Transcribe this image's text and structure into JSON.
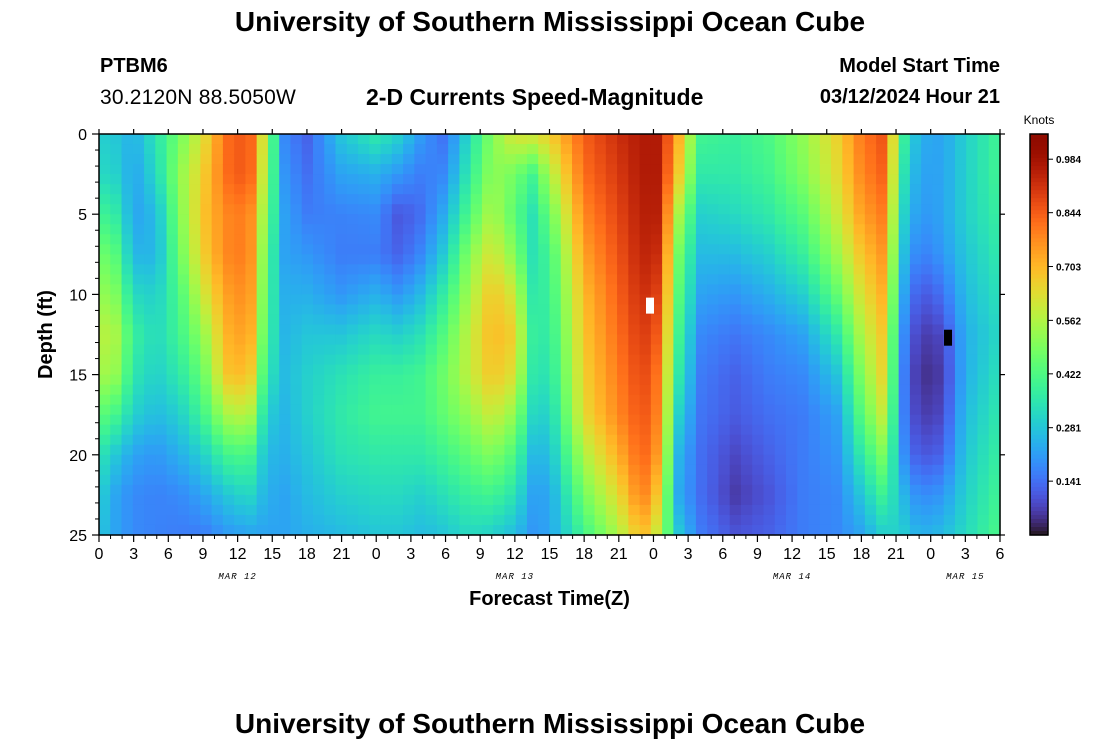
{
  "header": {
    "title": "University of Southern Mississippi Ocean Cube",
    "station_id": "PTBM6",
    "station_coords": "30.2120N  88.5050W",
    "subtitle": "2-D Currents Speed-Magnitude",
    "model_start_label": "Model Start Time",
    "model_start_time": "03/12/2024 Hour 21"
  },
  "footer": {
    "title": "University of Southern Mississippi Ocean Cube"
  },
  "chart_data": {
    "type": "heatmap",
    "title": "2-D Currents Speed-Magnitude",
    "xlabel": "Forecast Time(Z)",
    "ylabel": "Depth (ft)",
    "x_unit": "forecast hour (Z), starting Mar 12 00Z",
    "xlim": [
      0,
      78
    ],
    "ylim": [
      0,
      25
    ],
    "y_inverted": true,
    "x_ticks": [
      0,
      3,
      6,
      9,
      12,
      15,
      18,
      21,
      24,
      27,
      30,
      33,
      36,
      39,
      42,
      45,
      48,
      51,
      54,
      57,
      60,
      63,
      66,
      69,
      72,
      75,
      78
    ],
    "x_tick_labels": [
      "0",
      "3",
      "6",
      "9",
      "12",
      "15",
      "18",
      "21",
      "0",
      "3",
      "6",
      "9",
      "12",
      "15",
      "18",
      "21",
      "0",
      "3",
      "6",
      "9",
      "12",
      "15",
      "18",
      "21",
      "0",
      "3",
      "6"
    ],
    "y_ticks": [
      0,
      5,
      10,
      15,
      20,
      25
    ],
    "y_tick_labels": [
      "0",
      "5",
      "10",
      "15",
      "20",
      "25"
    ],
    "date_labels": [
      {
        "x": 12,
        "label": "MAR 12"
      },
      {
        "x": 36,
        "label": "MAR 13"
      },
      {
        "x": 60,
        "label": "MAR 14"
      },
      {
        "x": 75,
        "label": "MAR 15"
      }
    ],
    "colorbar": {
      "unit": "Knots",
      "range": [
        0.0,
        1.05
      ],
      "ticks": [
        0.984,
        0.844,
        0.703,
        0.562,
        0.422,
        0.281,
        0.141
      ],
      "colormap": "turbo"
    },
    "grid": false,
    "depths": [
      0,
      2.5,
      5,
      7.5,
      10,
      12.5,
      15,
      17.5,
      20,
      22.5,
      25
    ],
    "columns": [
      {
        "t": 0,
        "v": [
          0.3,
          0.32,
          0.4,
          0.48,
          0.53,
          0.58,
          0.55,
          0.45,
          0.35,
          0.3,
          0.28
        ]
      },
      {
        "t": 1.5,
        "v": [
          0.28,
          0.3,
          0.36,
          0.43,
          0.49,
          0.55,
          0.52,
          0.4,
          0.28,
          0.22,
          0.22
        ]
      },
      {
        "t": 3,
        "v": [
          0.24,
          0.22,
          0.22,
          0.25,
          0.32,
          0.38,
          0.35,
          0.3,
          0.22,
          0.18,
          0.18
        ]
      },
      {
        "t": 5,
        "v": [
          0.35,
          0.32,
          0.26,
          0.25,
          0.3,
          0.32,
          0.3,
          0.26,
          0.2,
          0.17,
          0.17
        ]
      },
      {
        "t": 7,
        "v": [
          0.48,
          0.52,
          0.5,
          0.47,
          0.42,
          0.4,
          0.36,
          0.3,
          0.24,
          0.18,
          0.16
        ]
      },
      {
        "t": 9,
        "v": [
          0.62,
          0.66,
          0.68,
          0.66,
          0.6,
          0.52,
          0.46,
          0.4,
          0.3,
          0.22,
          0.16
        ]
      },
      {
        "t": 11,
        "v": [
          0.82,
          0.82,
          0.78,
          0.78,
          0.74,
          0.71,
          0.68,
          0.55,
          0.4,
          0.28,
          0.2
        ]
      },
      {
        "t": 13,
        "v": [
          0.86,
          0.86,
          0.8,
          0.8,
          0.78,
          0.75,
          0.7,
          0.58,
          0.42,
          0.32,
          0.22
        ]
      },
      {
        "t": 14.5,
        "v": [
          0.55,
          0.52,
          0.48,
          0.44,
          0.42,
          0.4,
          0.36,
          0.3,
          0.26,
          0.24,
          0.22
        ]
      },
      {
        "t": 16,
        "v": [
          0.18,
          0.2,
          0.22,
          0.22,
          0.24,
          0.25,
          0.26,
          0.25,
          0.24,
          0.22,
          0.22
        ]
      },
      {
        "t": 18,
        "v": [
          0.12,
          0.14,
          0.16,
          0.2,
          0.24,
          0.28,
          0.3,
          0.3,
          0.28,
          0.26,
          0.24
        ]
      },
      {
        "t": 21,
        "v": [
          0.28,
          0.22,
          0.17,
          0.16,
          0.2,
          0.28,
          0.34,
          0.36,
          0.34,
          0.3,
          0.26
        ]
      },
      {
        "t": 24,
        "v": [
          0.36,
          0.24,
          0.18,
          0.16,
          0.24,
          0.32,
          0.38,
          0.4,
          0.36,
          0.32,
          0.28
        ]
      },
      {
        "t": 26,
        "v": [
          0.3,
          0.2,
          0.1,
          0.12,
          0.2,
          0.3,
          0.38,
          0.4,
          0.36,
          0.32,
          0.28
        ]
      },
      {
        "t": 28,
        "v": [
          0.2,
          0.16,
          0.14,
          0.18,
          0.26,
          0.34,
          0.4,
          0.4,
          0.36,
          0.3,
          0.26
        ]
      },
      {
        "t": 30,
        "v": [
          0.14,
          0.18,
          0.24,
          0.3,
          0.38,
          0.44,
          0.48,
          0.46,
          0.4,
          0.34,
          0.28
        ]
      },
      {
        "t": 32,
        "v": [
          0.32,
          0.36,
          0.42,
          0.5,
          0.54,
          0.58,
          0.58,
          0.52,
          0.45,
          0.38,
          0.32
        ]
      },
      {
        "t": 34,
        "v": [
          0.5,
          0.52,
          0.56,
          0.62,
          0.68,
          0.7,
          0.68,
          0.6,
          0.5,
          0.4,
          0.3
        ]
      },
      {
        "t": 36,
        "v": [
          0.62,
          0.48,
          0.44,
          0.5,
          0.6,
          0.66,
          0.62,
          0.52,
          0.42,
          0.34,
          0.26
        ]
      },
      {
        "t": 37.5,
        "v": [
          0.62,
          0.4,
          0.34,
          0.34,
          0.36,
          0.38,
          0.36,
          0.32,
          0.26,
          0.22,
          0.2
        ]
      },
      {
        "t": 39,
        "v": [
          0.66,
          0.55,
          0.46,
          0.4,
          0.38,
          0.36,
          0.34,
          0.3,
          0.26,
          0.22,
          0.22
        ]
      },
      {
        "t": 42,
        "v": [
          0.84,
          0.82,
          0.78,
          0.74,
          0.7,
          0.68,
          0.66,
          0.64,
          0.56,
          0.48,
          0.4
        ]
      },
      {
        "t": 45,
        "v": [
          0.92,
          0.9,
          0.88,
          0.86,
          0.84,
          0.82,
          0.8,
          0.78,
          0.72,
          0.64,
          0.56
        ]
      },
      {
        "t": 47,
        "v": [
          0.96,
          0.96,
          0.95,
          0.94,
          0.92,
          0.9,
          0.88,
          0.86,
          0.84,
          0.8,
          0.7
        ]
      },
      {
        "t": 48.5,
        "v": [
          0.96,
          0.96,
          0.95,
          0.92,
          0.88,
          0.84,
          0.8,
          0.78,
          0.74,
          0.66,
          0.58
        ]
      },
      {
        "t": 50,
        "v": [
          0.75,
          0.7,
          0.58,
          0.5,
          0.46,
          0.42,
          0.38,
          0.32,
          0.26,
          0.24,
          0.3
        ]
      },
      {
        "t": 52,
        "v": [
          0.4,
          0.36,
          0.3,
          0.26,
          0.22,
          0.18,
          0.16,
          0.15,
          0.14,
          0.14,
          0.16
        ]
      },
      {
        "t": 55,
        "v": [
          0.38,
          0.36,
          0.32,
          0.26,
          0.2,
          0.15,
          0.12,
          0.11,
          0.08,
          0.06,
          0.1
        ]
      },
      {
        "t": 58,
        "v": [
          0.42,
          0.4,
          0.36,
          0.3,
          0.24,
          0.18,
          0.16,
          0.14,
          0.12,
          0.1,
          0.12
        ]
      },
      {
        "t": 61,
        "v": [
          0.52,
          0.5,
          0.44,
          0.38,
          0.3,
          0.22,
          0.18,
          0.16,
          0.16,
          0.16,
          0.16
        ]
      },
      {
        "t": 64,
        "v": [
          0.66,
          0.64,
          0.6,
          0.54,
          0.46,
          0.36,
          0.28,
          0.22,
          0.2,
          0.18,
          0.18
        ]
      },
      {
        "t": 66,
        "v": [
          0.8,
          0.78,
          0.74,
          0.68,
          0.62,
          0.56,
          0.5,
          0.44,
          0.36,
          0.28,
          0.22
        ]
      },
      {
        "t": 68,
        "v": [
          0.86,
          0.84,
          0.8,
          0.76,
          0.72,
          0.68,
          0.66,
          0.6,
          0.5,
          0.4,
          0.3
        ]
      },
      {
        "t": 69.5,
        "v": [
          0.4,
          0.36,
          0.32,
          0.28,
          0.24,
          0.2,
          0.18,
          0.18,
          0.2,
          0.26,
          0.3
        ]
      },
      {
        "t": 71,
        "v": [
          0.24,
          0.22,
          0.2,
          0.16,
          0.1,
          0.06,
          0.04,
          0.06,
          0.1,
          0.18,
          0.24
        ]
      },
      {
        "t": 73,
        "v": [
          0.22,
          0.22,
          0.22,
          0.2,
          0.14,
          0.08,
          0.06,
          0.08,
          0.12,
          0.2,
          0.26
        ]
      },
      {
        "t": 75,
        "v": [
          0.3,
          0.3,
          0.3,
          0.28,
          0.26,
          0.24,
          0.24,
          0.26,
          0.28,
          0.3,
          0.32
        ]
      },
      {
        "t": 78,
        "v": [
          0.4,
          0.4,
          0.38,
          0.36,
          0.34,
          0.32,
          0.34,
          0.36,
          0.38,
          0.4,
          0.42
        ]
      }
    ],
    "annotations": [
      {
        "x": 47.7,
        "y": 10.7,
        "color": "#ffffff",
        "kind": "marker"
      },
      {
        "x": 73.5,
        "y": 12.7,
        "color": "#000000",
        "kind": "marker"
      }
    ]
  }
}
